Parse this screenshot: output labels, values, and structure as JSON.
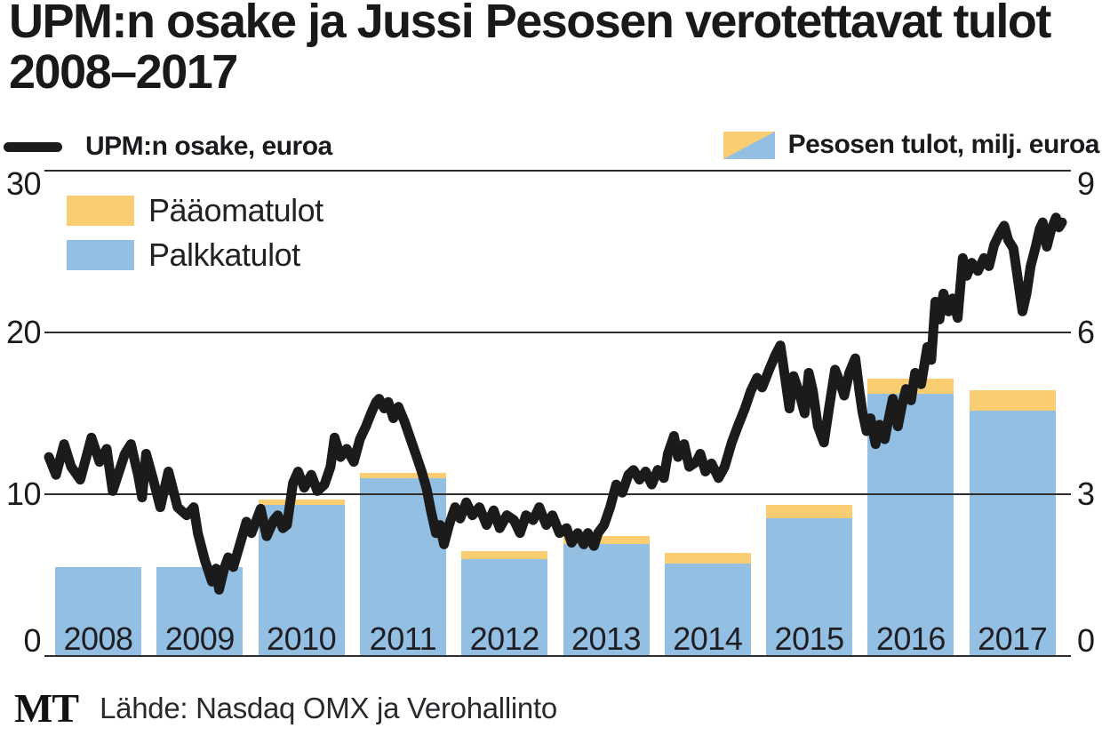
{
  "title": "UPM:n osake ja Jussi Pesosen verotettavat tulot 2008–2017",
  "legend": {
    "line_label": "UPM:n osake, euroa",
    "bars_label": "Pesosen tulot, milj. euroa",
    "capital_label": "Pääomatulot",
    "salary_label": "Palkkatulot"
  },
  "footer": {
    "logo": "MT",
    "source": "Lähde: Nasdaq OMX ja Verohallinto"
  },
  "colors": {
    "capital": "#FACD72",
    "salary": "#93BFE3",
    "line": "#1B1B1B",
    "grid": "#2E2E2E",
    "text": "#1B1B1F"
  },
  "chart_data": {
    "type": "combo",
    "grid": "horizontal",
    "left_axis": {
      "title": "UPM:n osake, euroa",
      "unit": "euroa",
      "ylim": [
        0,
        30
      ],
      "ticks": [
        30,
        20,
        10,
        0
      ]
    },
    "right_axis": {
      "title": "Pesosen tulot, milj. euroa",
      "unit": "milj. euroa",
      "ylim": [
        0,
        9
      ],
      "ticks": [
        9,
        6,
        3,
        0
      ]
    },
    "bars": {
      "type": "stacked-bar",
      "axis": "right",
      "categories": [
        "2008",
        "2009",
        "2010",
        "2011",
        "2012",
        "2013",
        "2014",
        "2015",
        "2016",
        "2017"
      ],
      "series": [
        {
          "name": "Palkkatulot",
          "color": "#93BFE3",
          "values": [
            1.65,
            1.65,
            2.8,
            3.3,
            1.8,
            2.07,
            1.71,
            2.55,
            4.86,
            4.55
          ]
        },
        {
          "name": "Pääomatulot",
          "color": "#FACD72",
          "values": [
            0,
            0,
            0.1,
            0.1,
            0.14,
            0.15,
            0.2,
            0.25,
            0.28,
            0.38
          ]
        }
      ]
    },
    "line": {
      "type": "line",
      "axis": "left",
      "name": "UPM:n osake, euroa",
      "color": "#1B1B1B",
      "points": [
        [
          2008.0,
          12.3
        ],
        [
          2008.07,
          11.2
        ],
        [
          2008.15,
          13.1
        ],
        [
          2008.22,
          11.7
        ],
        [
          2008.31,
          10.9
        ],
        [
          2008.42,
          13.5
        ],
        [
          2008.5,
          12.0
        ],
        [
          2008.57,
          12.8
        ],
        [
          2008.63,
          10.2
        ],
        [
          2008.75,
          12.5
        ],
        [
          2008.81,
          13.1
        ],
        [
          2008.88,
          11.2
        ],
        [
          2008.92,
          9.8
        ],
        [
          2008.96,
          12.5
        ],
        [
          2009.03,
          10.9
        ],
        [
          2009.1,
          9.2
        ],
        [
          2009.18,
          11.4
        ],
        [
          2009.27,
          9.2
        ],
        [
          2009.36,
          8.7
        ],
        [
          2009.43,
          9.2
        ],
        [
          2009.47,
          7.6
        ],
        [
          2009.54,
          5.9
        ],
        [
          2009.61,
          4.6
        ],
        [
          2009.65,
          5.4
        ],
        [
          2009.68,
          4.1
        ],
        [
          2009.73,
          5.4
        ],
        [
          2009.77,
          6.1
        ],
        [
          2009.82,
          5.5
        ],
        [
          2009.89,
          7.0
        ],
        [
          2009.95,
          8.3
        ],
        [
          2010.0,
          7.6
        ],
        [
          2010.09,
          9.1
        ],
        [
          2010.15,
          7.4
        ],
        [
          2010.22,
          8.4
        ],
        [
          2010.26,
          8.7
        ],
        [
          2010.31,
          7.9
        ],
        [
          2010.35,
          8.1
        ],
        [
          2010.41,
          10.7
        ],
        [
          2010.46,
          11.4
        ],
        [
          2010.52,
          10.4
        ],
        [
          2010.59,
          11.2
        ],
        [
          2010.65,
          10.2
        ],
        [
          2010.72,
          10.6
        ],
        [
          2010.78,
          11.7
        ],
        [
          2010.82,
          13.5
        ],
        [
          2010.88,
          12.3
        ],
        [
          2010.94,
          12.8
        ],
        [
          2011.01,
          12.0
        ],
        [
          2011.07,
          13.4
        ],
        [
          2011.13,
          14.2
        ],
        [
          2011.18,
          15.0
        ],
        [
          2011.23,
          15.7
        ],
        [
          2011.26,
          15.9
        ],
        [
          2011.31,
          15.3
        ],
        [
          2011.35,
          15.7
        ],
        [
          2011.4,
          14.7
        ],
        [
          2011.45,
          15.4
        ],
        [
          2011.51,
          14.5
        ],
        [
          2011.57,
          13.4
        ],
        [
          2011.62,
          12.5
        ],
        [
          2011.68,
          11.4
        ],
        [
          2011.73,
          10.3
        ],
        [
          2011.77,
          9.0
        ],
        [
          2011.82,
          7.6
        ],
        [
          2011.86,
          8.1
        ],
        [
          2011.9,
          6.9
        ],
        [
          2011.95,
          8.1
        ],
        [
          2012.01,
          9.2
        ],
        [
          2012.06,
          8.5
        ],
        [
          2012.12,
          9.5
        ],
        [
          2012.18,
          8.7
        ],
        [
          2012.25,
          9.2
        ],
        [
          2012.32,
          8.1
        ],
        [
          2012.39,
          9.0
        ],
        [
          2012.45,
          7.9
        ],
        [
          2012.52,
          8.7
        ],
        [
          2012.59,
          8.4
        ],
        [
          2012.65,
          7.6
        ],
        [
          2012.71,
          8.7
        ],
        [
          2012.78,
          8.4
        ],
        [
          2012.84,
          9.2
        ],
        [
          2012.91,
          8.1
        ],
        [
          2012.97,
          8.7
        ],
        [
          2013.04,
          7.6
        ],
        [
          2013.11,
          7.9
        ],
        [
          2013.16,
          7.0
        ],
        [
          2013.22,
          7.6
        ],
        [
          2013.28,
          6.9
        ],
        [
          2013.32,
          7.6
        ],
        [
          2013.38,
          6.8
        ],
        [
          2013.42,
          7.6
        ],
        [
          2013.48,
          8.1
        ],
        [
          2013.54,
          9.2
        ],
        [
          2013.6,
          10.6
        ],
        [
          2013.66,
          10.1
        ],
        [
          2013.72,
          11.2
        ],
        [
          2013.77,
          11.5
        ],
        [
          2013.83,
          10.9
        ],
        [
          2013.89,
          11.4
        ],
        [
          2013.95,
          10.6
        ],
        [
          2014.01,
          11.5
        ],
        [
          2014.07,
          11.0
        ],
        [
          2014.11,
          12.5
        ],
        [
          2014.17,
          13.6
        ],
        [
          2014.21,
          12.3
        ],
        [
          2014.27,
          13.1
        ],
        [
          2014.32,
          11.7
        ],
        [
          2014.39,
          12.0
        ],
        [
          2014.43,
          12.5
        ],
        [
          2014.48,
          11.4
        ],
        [
          2014.54,
          11.9
        ],
        [
          2014.61,
          11.0
        ],
        [
          2014.67,
          11.7
        ],
        [
          2014.74,
          13.2
        ],
        [
          2014.8,
          14.2
        ],
        [
          2014.87,
          15.3
        ],
        [
          2014.93,
          16.4
        ],
        [
          2014.99,
          17.2
        ],
        [
          2015.04,
          16.6
        ],
        [
          2015.11,
          17.7
        ],
        [
          2015.17,
          18.6
        ],
        [
          2015.22,
          19.2
        ],
        [
          2015.26,
          17.5
        ],
        [
          2015.31,
          15.3
        ],
        [
          2015.35,
          17.3
        ],
        [
          2015.4,
          16.4
        ],
        [
          2015.46,
          15.0
        ],
        [
          2015.5,
          17.5
        ],
        [
          2015.54,
          16.4
        ],
        [
          2015.59,
          14.2
        ],
        [
          2015.65,
          13.2
        ],
        [
          2015.7,
          15.3
        ],
        [
          2015.76,
          17.7
        ],
        [
          2015.81,
          16.9
        ],
        [
          2015.85,
          16.1
        ],
        [
          2015.9,
          17.5
        ],
        [
          2015.96,
          18.4
        ],
        [
          2016.0,
          16.4
        ],
        [
          2016.03,
          15.1
        ],
        [
          2016.07,
          13.9
        ],
        [
          2016.11,
          14.7
        ],
        [
          2016.16,
          13.1
        ],
        [
          2016.2,
          14.3
        ],
        [
          2016.25,
          13.4
        ],
        [
          2016.29,
          14.7
        ],
        [
          2016.33,
          15.9
        ],
        [
          2016.38,
          14.2
        ],
        [
          2016.42,
          15.5
        ],
        [
          2016.46,
          16.5
        ],
        [
          2016.51,
          15.8
        ],
        [
          2016.55,
          17.5
        ],
        [
          2016.61,
          16.8
        ],
        [
          2016.67,
          19.1
        ],
        [
          2016.71,
          18.3
        ],
        [
          2016.75,
          21.9
        ],
        [
          2016.79,
          20.8
        ],
        [
          2016.83,
          22.4
        ],
        [
          2016.88,
          21.3
        ],
        [
          2016.92,
          22.1
        ],
        [
          2016.97,
          20.9
        ],
        [
          2017.02,
          24.6
        ],
        [
          2017.06,
          23.5
        ],
        [
          2017.11,
          24.3
        ],
        [
          2017.17,
          23.8
        ],
        [
          2017.23,
          24.6
        ],
        [
          2017.28,
          24.1
        ],
        [
          2017.33,
          25.4
        ],
        [
          2017.39,
          26.2
        ],
        [
          2017.43,
          26.6
        ],
        [
          2017.47,
          25.7
        ],
        [
          2017.52,
          25.2
        ],
        [
          2017.56,
          23.5
        ],
        [
          2017.61,
          21.3
        ],
        [
          2017.65,
          22.4
        ],
        [
          2017.69,
          24.1
        ],
        [
          2017.74,
          25.3
        ],
        [
          2017.78,
          26.4
        ],
        [
          2017.81,
          26.8
        ],
        [
          2017.85,
          25.3
        ],
        [
          2017.89,
          26.3
        ],
        [
          2017.94,
          27.1
        ],
        [
          2017.97,
          26.5
        ],
        [
          2018.0,
          26.8
        ]
      ]
    }
  }
}
